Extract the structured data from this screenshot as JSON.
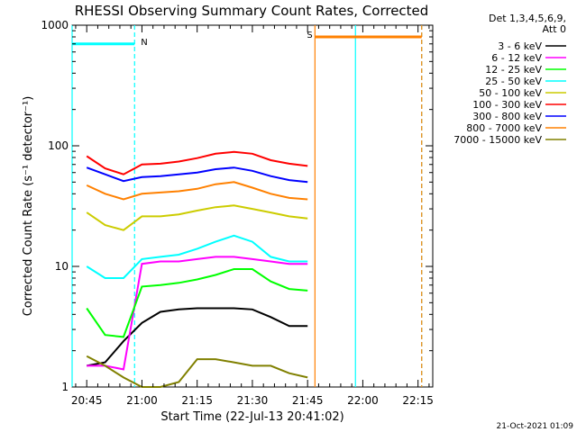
{
  "chart_data": {
    "type": "line",
    "title": "RHESSI Observing Summary Count Rates, Corrected",
    "xlabel": "Start Time (22-Jul-13 20:41:02)",
    "ylabel": "Corrected Count Rate (s⁻¹ detector⁻¹)",
    "xlim": [
      "20:41:02",
      "22:19:00"
    ],
    "ylim": [
      1,
      1000
    ],
    "yscale": "log",
    "xticks": [
      "20:45",
      "21:00",
      "21:15",
      "21:30",
      "21:45",
      "22:00",
      "22:15"
    ],
    "yticks": [
      "1",
      "10",
      "100",
      "1000"
    ],
    "legend_header": [
      "Det 1,3,4,5,6,9,",
      "Att 0"
    ],
    "legend_placement": "right",
    "footer": "21-Oct-2021 01:09",
    "series": [
      {
        "name": "3 - 6 keV",
        "color": "#000000",
        "x": [
          "20:45",
          "20:50",
          "20:55",
          "21:00",
          "21:05",
          "21:10",
          "21:15",
          "21:20",
          "21:25",
          "21:30",
          "21:35",
          "21:40",
          "21:45"
        ],
        "y": [
          1.5,
          1.6,
          2.4,
          3.4,
          4.2,
          4.4,
          4.5,
          4.5,
          4.5,
          4.4,
          3.8,
          3.2,
          3.2
        ]
      },
      {
        "name": "6 - 12 keV",
        "color": "#ff00ff",
        "x": [
          "20:45",
          "20:50",
          "20:55",
          "21:00",
          "21:05",
          "21:10",
          "21:15",
          "21:20",
          "21:25",
          "21:30",
          "21:35",
          "21:40",
          "21:45"
        ],
        "y": [
          1.5,
          1.5,
          1.4,
          10.5,
          11,
          11,
          11.5,
          12,
          12,
          11.5,
          11,
          10.5,
          10.5
        ]
      },
      {
        "name": "12 - 25 keV",
        "color": "#00ff00",
        "x": [
          "20:45",
          "20:50",
          "20:55",
          "21:00",
          "21:05",
          "21:10",
          "21:15",
          "21:20",
          "21:25",
          "21:30",
          "21:35",
          "21:40",
          "21:45"
        ],
        "y": [
          4.5,
          2.7,
          2.6,
          6.8,
          7,
          7.3,
          7.8,
          8.5,
          9.5,
          9.5,
          7.5,
          6.5,
          6.3
        ]
      },
      {
        "name": "25 - 50 keV",
        "color": "#00ffff",
        "x": [
          "20:45",
          "20:50",
          "20:55",
          "21:00",
          "21:05",
          "21:10",
          "21:15",
          "21:20",
          "21:25",
          "21:30",
          "21:35",
          "21:40",
          "21:45"
        ],
        "y": [
          10,
          8,
          8,
          11.5,
          12,
          12.5,
          14,
          16,
          18,
          16,
          12,
          11,
          11
        ]
      },
      {
        "name": "50 - 100 keV",
        "color": "#cccc00",
        "x": [
          "20:45",
          "20:50",
          "20:55",
          "21:00",
          "21:05",
          "21:10",
          "21:15",
          "21:20",
          "21:25",
          "21:30",
          "21:35",
          "21:40",
          "21:45"
        ],
        "y": [
          28,
          22,
          20,
          26,
          26,
          27,
          29,
          31,
          32,
          30,
          28,
          26,
          25
        ]
      },
      {
        "name": "100 - 300 keV",
        "color": "#ff0000",
        "x": [
          "20:45",
          "20:50",
          "20:55",
          "21:00",
          "21:05",
          "21:10",
          "21:15",
          "21:20",
          "21:25",
          "21:30",
          "21:35",
          "21:40",
          "21:45"
        ],
        "y": [
          82,
          65,
          58,
          70,
          71,
          74,
          79,
          86,
          89,
          86,
          76,
          71,
          68
        ]
      },
      {
        "name": "300 - 800 keV",
        "color": "#0000ff",
        "x": [
          "20:45",
          "20:50",
          "20:55",
          "21:00",
          "21:05",
          "21:10",
          "21:15",
          "21:20",
          "21:25",
          "21:30",
          "21:35",
          "21:40",
          "21:45"
        ],
        "y": [
          66,
          58,
          51,
          55,
          56,
          58,
          60,
          64,
          66,
          62,
          56,
          52,
          50
        ]
      },
      {
        "name": "800 - 7000 keV",
        "color": "#ff8000",
        "x": [
          "20:45",
          "20:50",
          "20:55",
          "21:00",
          "21:05",
          "21:10",
          "21:15",
          "21:20",
          "21:25",
          "21:30",
          "21:35",
          "21:40",
          "21:45"
        ],
        "y": [
          47,
          40,
          36,
          40,
          41,
          42,
          44,
          48,
          50,
          45,
          40,
          37,
          36
        ]
      },
      {
        "name": "7000 - 15000 keV",
        "color": "#808000",
        "x": [
          "20:45",
          "20:50",
          "20:55",
          "21:00",
          "21:05",
          "21:10",
          "21:15",
          "21:20",
          "21:25",
          "21:30",
          "21:35",
          "21:40",
          "21:45"
        ],
        "y": [
          1.8,
          1.5,
          1.2,
          1,
          1,
          1.1,
          1.7,
          1.7,
          1.6,
          1.5,
          1.5,
          1.3,
          1.2
        ]
      }
    ],
    "event_bars": [
      {
        "label": "N",
        "color": "#00ffff",
        "y": 700,
        "start": "20:41:02",
        "end": "20:58:00"
      },
      {
        "label": "S",
        "color": "#ff8000",
        "y": 800,
        "start": "21:47:00",
        "end": "22:16:00"
      }
    ],
    "markers": [
      {
        "color": "#00ffff",
        "time": "20:41:02",
        "style": "solid"
      },
      {
        "color": "#00ffff",
        "time": "20:58:00",
        "style": "dashed"
      },
      {
        "color": "#ff8000",
        "time": "21:47:00",
        "style": "solid"
      },
      {
        "color": "#00ffff",
        "time": "21:58:00",
        "style": "solid"
      },
      {
        "color": "#00ffff",
        "time": "22:16:00",
        "style": "dashed"
      },
      {
        "color": "#ff8000",
        "time": "22:16:00",
        "style": "dashed"
      }
    ]
  }
}
